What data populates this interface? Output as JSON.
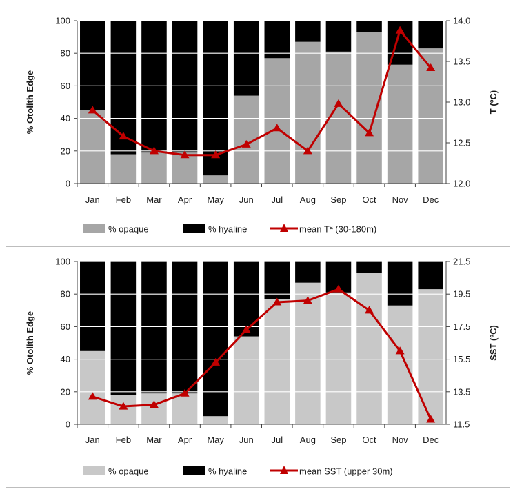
{
  "colors": {
    "opaque_top": "#a6a6a6",
    "opaque_bottom": "#c8c8c8",
    "hyaline": "#000000",
    "temp_line": "#c00000",
    "grid": "#ffffff",
    "axis": "#404040"
  },
  "chart_data": [
    {
      "type": "bar",
      "stacked": true,
      "categories": [
        "Jan",
        "Feb",
        "Mar",
        "Apr",
        "May",
        "Jun",
        "Jul",
        "Aug",
        "Sep",
        "Oct",
        "Nov",
        "Dec"
      ],
      "ylabel": "% Otolith Edge",
      "y2label": "T (ºC)",
      "ylim": [
        0,
        100
      ],
      "y2lim": [
        12.0,
        14.0
      ],
      "yticks": [
        "0",
        "20",
        "40",
        "60",
        "80",
        "100"
      ],
      "y2ticks": [
        "12.0",
        "12.5",
        "13.0",
        "13.5",
        "14.0"
      ],
      "legend_position": "bottom",
      "series": [
        {
          "name": "% opaque",
          "kind": "bar",
          "values": [
            45,
            18,
            19,
            19,
            5,
            54,
            77,
            87,
            81,
            93,
            73,
            83
          ]
        },
        {
          "name": "% hyaline",
          "kind": "bar",
          "values": [
            55,
            82,
            81,
            81,
            95,
            46,
            23,
            13,
            19,
            7,
            27,
            17
          ]
        },
        {
          "name": "mean Tª (30-180m)",
          "kind": "line",
          "axis": "y2",
          "marker": "triangle",
          "values": [
            12.9,
            12.58,
            12.4,
            12.35,
            12.35,
            12.48,
            12.68,
            12.4,
            12.98,
            12.62,
            13.88,
            13.42
          ]
        }
      ]
    },
    {
      "type": "bar",
      "stacked": true,
      "categories": [
        "Jan",
        "Feb",
        "Mar",
        "Apr",
        "May",
        "Jun",
        "Jul",
        "Aug",
        "Sep",
        "Oct",
        "Nov",
        "Dec"
      ],
      "ylabel": "% Otolith Edge",
      "y2label": "SST (ºC)",
      "ylim": [
        0,
        100
      ],
      "y2lim": [
        11.5,
        21.5
      ],
      "yticks": [
        "0",
        "20",
        "40",
        "60",
        "80",
        "100"
      ],
      "y2ticks": [
        "11.5",
        "13.5",
        "15.5",
        "17.5",
        "19.5",
        "21.5"
      ],
      "legend_position": "bottom",
      "series": [
        {
          "name": "% opaque",
          "kind": "bar",
          "values": [
            45,
            18,
            19,
            19,
            5,
            54,
            77,
            87,
            81,
            93,
            73,
            83
          ]
        },
        {
          "name": "% hyaline",
          "kind": "bar",
          "values": [
            55,
            82,
            81,
            81,
            95,
            46,
            23,
            13,
            19,
            7,
            27,
            17
          ]
        },
        {
          "name": "mean SST (upper 30m)",
          "kind": "line",
          "axis": "y2",
          "marker": "triangle",
          "values": [
            13.2,
            12.6,
            12.7,
            13.4,
            15.3,
            17.3,
            19.0,
            19.1,
            19.8,
            18.5,
            16.0,
            11.8
          ]
        }
      ]
    }
  ]
}
